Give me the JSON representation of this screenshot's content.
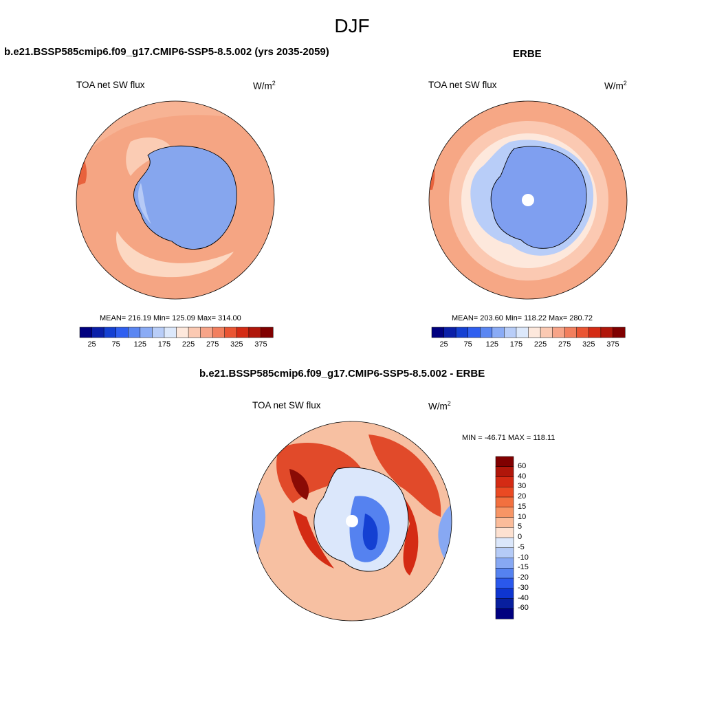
{
  "figure": {
    "title": "DJF"
  },
  "panels": [
    {
      "title": "b.e21.BSSP585cmip6.f09_g17.CMIP6-SSP5-8.5.002 (yrs 2035-2059)",
      "left_label": "TOA net SW flux",
      "units": "W/m",
      "units_sup": "2",
      "stats": "MEAN= 216.19  Min= 125.09  Max= 314.00"
    },
    {
      "title": "ERBE",
      "left_label": "TOA net SW flux",
      "units": "W/m",
      "units_sup": "2",
      "stats": "MEAN= 203.60  Min= 118.22  Max= 280.72"
    },
    {
      "title": "b.e21.BSSP585cmip6.f09_g17.CMIP6-SSP5-8.5.002 - ERBE",
      "left_label": "TOA net SW flux",
      "units": "W/m",
      "units_sup": "2",
      "stats": "MIN = -46.71 MAX = 118.11"
    }
  ],
  "colorbar_abs": {
    "tick_labels": [
      "25",
      "75",
      "125",
      "175",
      "225",
      "275",
      "325",
      "375"
    ],
    "colors": [
      "#00007f",
      "#0a1fa8",
      "#1440d2",
      "#2f5ff0",
      "#5a86f2",
      "#8aabf5",
      "#b8cdf8",
      "#dce8fb",
      "#fde8dc",
      "#fbc9b2",
      "#f7a488",
      "#f27f5e",
      "#ea5533",
      "#d42b14",
      "#b0160a",
      "#800000"
    ]
  },
  "colorbar_diff": {
    "labels": [
      "60",
      "40",
      "30",
      "20",
      "15",
      "10",
      "5",
      "0",
      "-5",
      "-10",
      "-15",
      "-20",
      "-30",
      "-40",
      "-60"
    ],
    "colors": [
      "#800000",
      "#b0160a",
      "#d42b14",
      "#ea4a23",
      "#f2703f",
      "#f79565",
      "#fbbc9a",
      "#fde1d1",
      "#dbe7fb",
      "#b5cbf7",
      "#87a8f3",
      "#5582f0",
      "#2a58ec",
      "#0e35d0",
      "#081f9e",
      "#00007f"
    ]
  },
  "maps": {
    "model_ocean": "#f5a583",
    "model_antarctica": "#86a6ee",
    "obs_ocean": "#f6a785",
    "obs_antarctica": "#7f9ff0",
    "diff_background": "#f7c0a2"
  }
}
